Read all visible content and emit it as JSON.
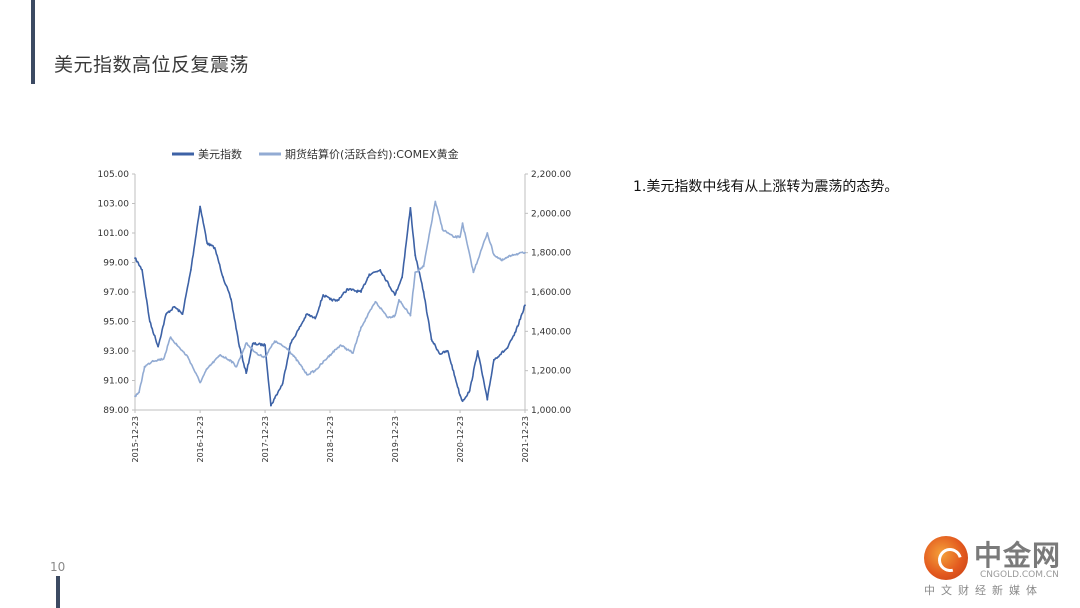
{
  "slide": {
    "title": "美元指数高位反复震荡",
    "bullet": "1.美元指数中线有从上涨转为震荡的态势。",
    "page_number": "10"
  },
  "logo": {
    "name": "中金网",
    "url": "CNGOLD.COM.CN",
    "subtitle": "中文财经新媒体",
    "icon": "swirl-logo-icon"
  },
  "colors": {
    "accent": "#3c4a62",
    "dxy_series": "#3d62a6",
    "gold_series": "#92abd3"
  },
  "chart_data": {
    "type": "line",
    "title": "",
    "legend_position": "top",
    "grid": false,
    "x_tick_labels": [
      "2015-12-23",
      "2016-12-23",
      "2017-12-23",
      "2018-12-23",
      "2019-12-23",
      "2020-12-23",
      "2021-12-23"
    ],
    "left_axis": {
      "min": 89,
      "max": 105,
      "ticks": [
        "105.00",
        "103.00",
        "101.00",
        "99.00",
        "97.00",
        "95.00",
        "93.00",
        "91.00",
        "89.00"
      ]
    },
    "right_axis": {
      "min": 1000,
      "max": 2200,
      "ticks": [
        "2,200.00",
        "2,000.00",
        "1,800.00",
        "1,600.00",
        "1,400.00",
        "1,200.00",
        "1,000.00"
      ]
    },
    "series": [
      {
        "name": "美元指数",
        "axis": "left",
        "x": [
          "2015-12-23",
          "2016-02-01",
          "2016-03-15",
          "2016-05-01",
          "2016-06-15",
          "2016-08-01",
          "2016-09-15",
          "2016-11-01",
          "2016-12-23",
          "2017-02-01",
          "2017-03-15",
          "2017-05-01",
          "2017-06-15",
          "2017-08-01",
          "2017-09-08",
          "2017-10-15",
          "2017-12-23",
          "2018-01-25",
          "2018-02-15",
          "2018-04-01",
          "2018-05-15",
          "2018-07-01",
          "2018-08-15",
          "2018-10-01",
          "2018-11-15",
          "2018-12-23",
          "2019-02-01",
          "2019-04-01",
          "2019-06-15",
          "2019-08-01",
          "2019-10-01",
          "2019-12-23",
          "2020-02-01",
          "2020-03-19",
          "2020-04-15",
          "2020-06-01",
          "2020-07-15",
          "2020-09-01",
          "2020-10-15",
          "2020-12-23",
          "2021-01-06",
          "2021-02-15",
          "2021-04-01",
          "2021-05-25",
          "2021-07-01",
          "2021-09-15",
          "2021-11-01",
          "2021-12-23"
        ],
        "values": [
          99.3,
          98.5,
          95.0,
          93.3,
          95.5,
          96.0,
          95.5,
          98.5,
          102.8,
          100.3,
          100.0,
          98.0,
          96.5,
          93.3,
          91.5,
          93.5,
          93.4,
          89.3,
          89.8,
          90.8,
          93.5,
          94.5,
          95.5,
          95.2,
          96.8,
          96.5,
          96.4,
          97.2,
          97.0,
          98.2,
          98.5,
          96.8,
          98.0,
          102.7,
          99.5,
          97.0,
          93.8,
          92.8,
          93.0,
          90.0,
          89.6,
          90.3,
          93.0,
          89.7,
          92.4,
          93.2,
          94.3,
          96.1
        ]
      },
      {
        "name": "期货结算价(活跃合约):COMEX黄金",
        "axis": "right",
        "x": [
          "2015-12-23",
          "2016-01-15",
          "2016-02-15",
          "2016-04-01",
          "2016-06-01",
          "2016-07-10",
          "2016-08-15",
          "2016-10-15",
          "2016-12-23",
          "2017-02-01",
          "2017-04-15",
          "2017-06-15",
          "2017-07-15",
          "2017-09-08",
          "2017-11-15",
          "2017-12-23",
          "2018-02-15",
          "2018-05-01",
          "2018-07-01",
          "2018-08-15",
          "2018-10-01",
          "2018-12-23",
          "2019-02-20",
          "2019-05-01",
          "2019-06-15",
          "2019-09-04",
          "2019-11-15",
          "2019-12-23",
          "2020-01-15",
          "2020-03-19",
          "2020-04-15",
          "2020-06-01",
          "2020-08-06",
          "2020-09-15",
          "2020-11-15",
          "2020-12-23",
          "2021-01-06",
          "2021-03-08",
          "2021-05-25",
          "2021-07-01",
          "2021-08-15",
          "2021-10-15",
          "2021-12-23"
        ],
        "values": [
          1070,
          1090,
          1220,
          1250,
          1260,
          1370,
          1330,
          1270,
          1140,
          1210,
          1280,
          1250,
          1220,
          1340,
          1280,
          1270,
          1350,
          1310,
          1240,
          1180,
          1200,
          1280,
          1330,
          1290,
          1420,
          1550,
          1470,
          1480,
          1560,
          1480,
          1700,
          1730,
          2060,
          1920,
          1880,
          1880,
          1950,
          1700,
          1900,
          1790,
          1760,
          1790,
          1800
        ]
      }
    ]
  }
}
